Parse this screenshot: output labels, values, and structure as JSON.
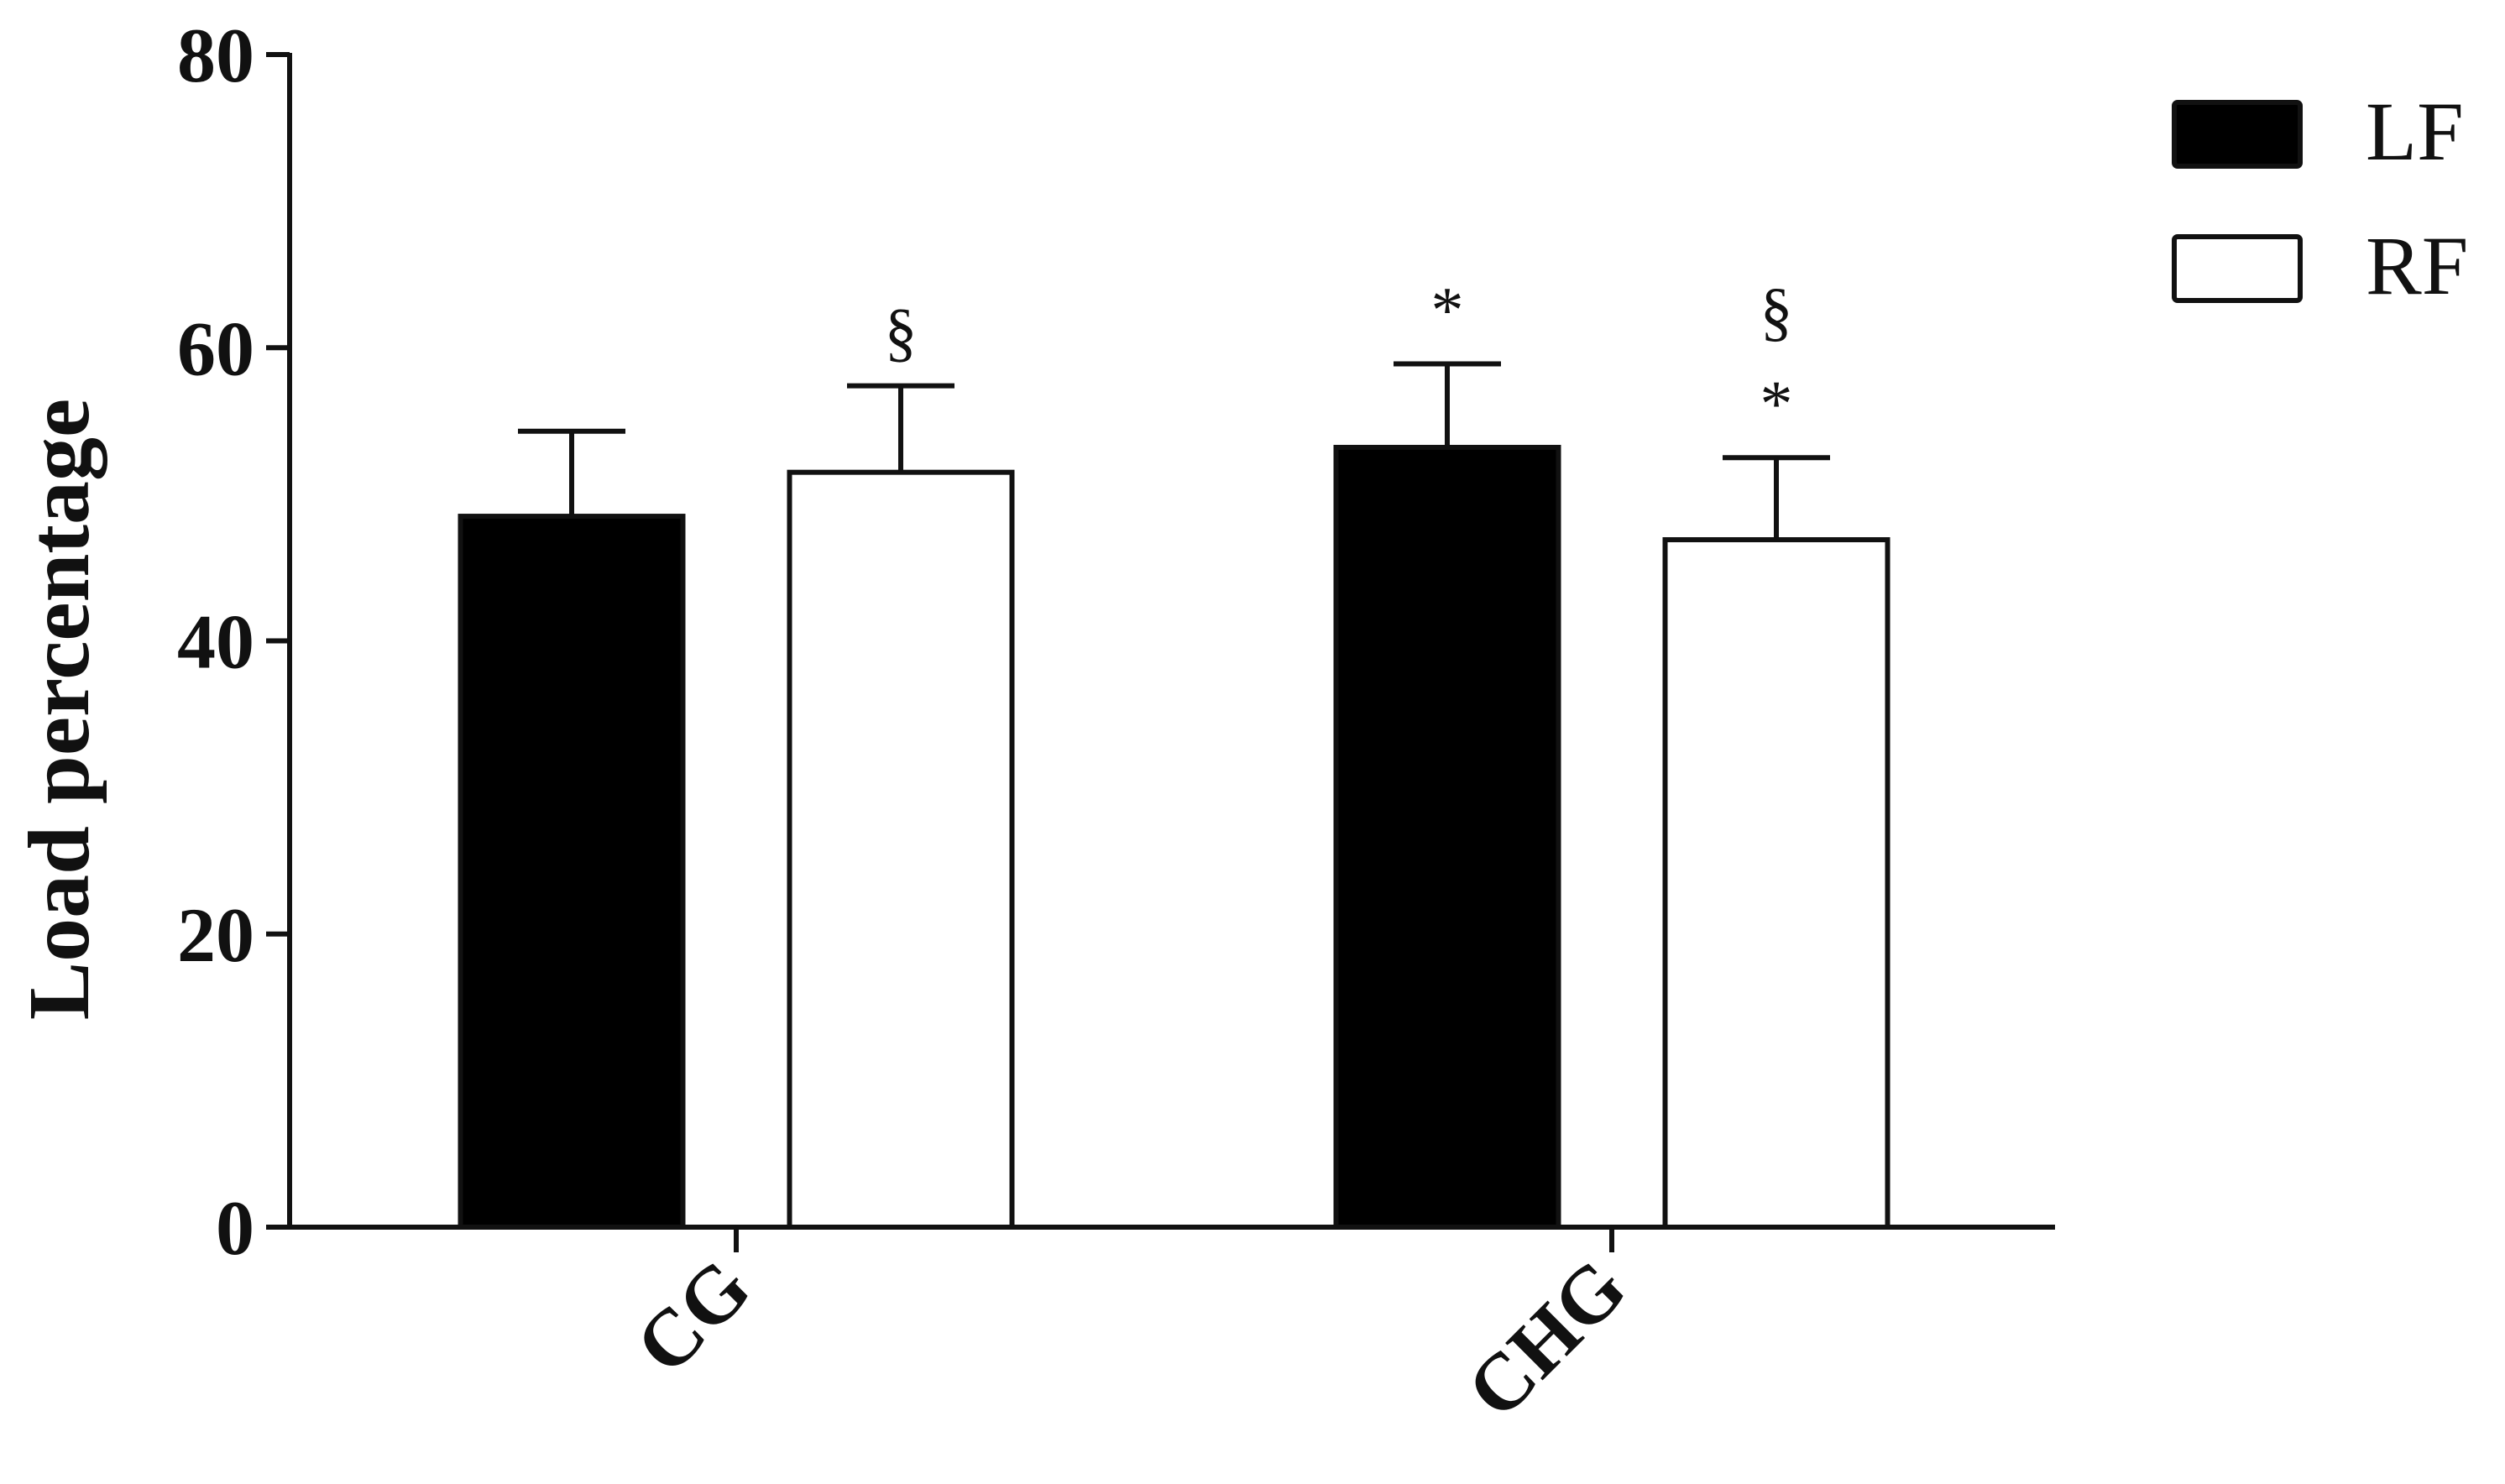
{
  "chart_data": {
    "type": "bar",
    "title": "",
    "xlabel": "",
    "ylabel": "Load percentage",
    "ylim": [
      0,
      80
    ],
    "yticks": [
      0,
      20,
      40,
      60,
      80
    ],
    "grid": false,
    "legend_position": "top-right",
    "categories": [
      "CG",
      "CHG"
    ],
    "series": [
      {
        "name": "LF",
        "color": "#000000",
        "fill": "filled",
        "values": [
          48.5,
          53.2
        ],
        "error": [
          5.8,
          5.7
        ]
      },
      {
        "name": "RF",
        "color": "#ffffff",
        "fill": "outline",
        "values": [
          51.5,
          46.9
        ],
        "error": [
          5.9,
          5.6
        ]
      }
    ],
    "annotations": [
      {
        "category": "CG",
        "series": "RF",
        "marks": [
          "§"
        ]
      },
      {
        "category": "CHG",
        "series": "LF",
        "marks": [
          "*"
        ]
      },
      {
        "category": "CHG",
        "series": "RF",
        "marks": [
          "§",
          "*"
        ]
      }
    ]
  }
}
